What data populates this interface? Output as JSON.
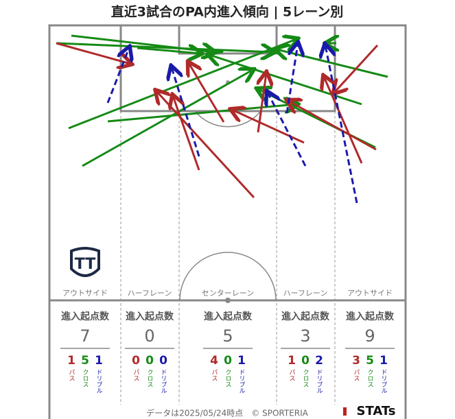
{
  "header": {
    "title": "直近3試合のPA内進入傾向 | 5レーン別"
  },
  "lanes": [
    {
      "name": "アウトサイド",
      "stat_title": "進入起点数",
      "total": 7,
      "pass": 1,
      "cross": 5,
      "dribble": 1
    },
    {
      "name": "ハーフレーン",
      "stat_title": "進入起点数",
      "total": 0,
      "pass": 0,
      "cross": 0,
      "dribble": 0
    },
    {
      "name": "センターレーン",
      "stat_title": "進入起点数",
      "total": 5,
      "pass": 4,
      "cross": 0,
      "dribble": 1
    },
    {
      "name": "ハーフレーン",
      "stat_title": "進入起点数",
      "total": 3,
      "pass": 1,
      "cross": 0,
      "dribble": 2
    },
    {
      "name": "アウトサイド",
      "stat_title": "進入起点数",
      "total": 9,
      "pass": 3,
      "cross": 5,
      "dribble": 1
    }
  ],
  "legend": {
    "pass": "パス",
    "cross": "クロス",
    "dribble": "ドリブル"
  },
  "footer": {
    "note": "データは2025/05/24時点　© SPORTERIA",
    "brand": "STATs"
  }
}
